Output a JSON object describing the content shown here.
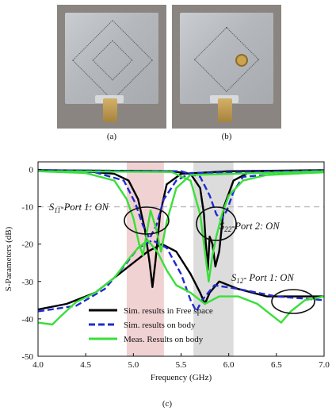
{
  "photos": {
    "a": {
      "caption": "(a)"
    },
    "b": {
      "caption": "(b)"
    }
  },
  "figure_caption": "(c)",
  "chart_data": {
    "type": "line",
    "xlabel": "Frequency (GHz)",
    "ylabel": "S-Parameters (dB)",
    "xlim": [
      4.0,
      7.0
    ],
    "ylim": [
      -50,
      2
    ],
    "xticks": [
      "4.0",
      "4.5",
      "5.0",
      "5.5",
      "6.0",
      "6.5",
      "7.0"
    ],
    "yticks": [
      "0",
      "-10",
      "-20",
      "-30",
      "-40",
      "-50"
    ],
    "reference_line_db": -10,
    "bands": [
      {
        "from": 4.93,
        "to": 5.32,
        "color": "#f1d2d2"
      },
      {
        "from": 5.63,
        "to": 6.05,
        "color": "#dcdcdc"
      }
    ],
    "annotations": [
      {
        "main": "S",
        "sub": "11",
        "rest": "-Port 1: ON"
      },
      {
        "main": "S",
        "sub": "22",
        "rest": "-Port 2: ON"
      },
      {
        "main": "S",
        "sub": "12",
        "rest": "- Port 1: ON"
      }
    ],
    "legend": {
      "placement": "bottom-center"
    },
    "series": [
      {
        "name": "Sim. results in Free space",
        "color": "#000000",
        "style": "solid",
        "curves": {
          "s11": [
            [
              4.0,
              -0.3
            ],
            [
              4.5,
              -0.5
            ],
            [
              4.8,
              -1.2
            ],
            [
              4.95,
              -3
            ],
            [
              5.05,
              -8
            ],
            [
              5.12,
              -16
            ],
            [
              5.17,
              -25
            ],
            [
              5.2,
              -31.5
            ],
            [
              5.23,
              -25
            ],
            [
              5.28,
              -12
            ],
            [
              5.35,
              -4
            ],
            [
              5.5,
              -1.2
            ],
            [
              6.0,
              -0.5
            ],
            [
              7.0,
              -0.2
            ]
          ],
          "s22": [
            [
              4.0,
              -0.2
            ],
            [
              5.4,
              -0.5
            ],
            [
              5.6,
              -1.2
            ],
            [
              5.7,
              -5
            ],
            [
              5.74,
              -12
            ],
            [
              5.76,
              -20
            ],
            [
              5.78,
              -27
            ],
            [
              5.8,
              -18
            ],
            [
              5.83,
              -20
            ],
            [
              5.86,
              -26
            ],
            [
              5.9,
              -22
            ],
            [
              5.95,
              -10
            ],
            [
              6.05,
              -3
            ],
            [
              6.2,
              -1
            ],
            [
              7.0,
              -0.3
            ]
          ],
          "s12": [
            [
              4.0,
              -37.5
            ],
            [
              4.3,
              -36
            ],
            [
              4.6,
              -33
            ],
            [
              4.8,
              -29
            ],
            [
              5.0,
              -25
            ],
            [
              5.15,
              -22
            ],
            [
              5.3,
              -20
            ],
            [
              5.45,
              -22
            ],
            [
              5.6,
              -28
            ],
            [
              5.7,
              -33
            ],
            [
              5.75,
              -36
            ],
            [
              5.8,
              -33
            ],
            [
              5.9,
              -30
            ],
            [
              6.1,
              -32
            ],
            [
              6.4,
              -34
            ],
            [
              6.7,
              -34
            ],
            [
              7.0,
              -34
            ]
          ]
        }
      },
      {
        "name": "Sim. results on body",
        "color": "#1f2bd1",
        "style": "dashed",
        "curves": {
          "s11": [
            [
              4.0,
              -0.3
            ],
            [
              4.6,
              -0.8
            ],
            [
              4.9,
              -3
            ],
            [
              5.02,
              -9
            ],
            [
              5.1,
              -15
            ],
            [
              5.17,
              -18.5
            ],
            [
              5.24,
              -15
            ],
            [
              5.32,
              -8
            ],
            [
              5.45,
              -3
            ],
            [
              5.6,
              -1
            ],
            [
              7.0,
              -0.3
            ]
          ],
          "s22": [
            [
              4.0,
              -0.2
            ],
            [
              5.5,
              -0.5
            ],
            [
              5.7,
              -2
            ],
            [
              5.8,
              -7
            ],
            [
              5.87,
              -12
            ],
            [
              5.92,
              -13.5
            ],
            [
              5.98,
              -11
            ],
            [
              6.05,
              -6
            ],
            [
              6.15,
              -2
            ],
            [
              7.0,
              -0.4
            ]
          ],
          "s12": [
            [
              4.0,
              -38
            ],
            [
              4.4,
              -36.5
            ],
            [
              4.7,
              -32
            ],
            [
              4.9,
              -26
            ],
            [
              5.05,
              -21
            ],
            [
              5.2,
              -19
            ],
            [
              5.35,
              -21
            ],
            [
              5.5,
              -28
            ],
            [
              5.6,
              -35
            ],
            [
              5.66,
              -38
            ],
            [
              5.72,
              -35
            ],
            [
              5.85,
              -31
            ],
            [
              6.1,
              -32
            ],
            [
              6.5,
              -34
            ],
            [
              7.0,
              -35
            ]
          ]
        }
      },
      {
        "name": "Meas. Results on body",
        "color": "#38e038",
        "style": "solid",
        "curves": {
          "s11": [
            [
              4.0,
              -0.5
            ],
            [
              4.5,
              -1
            ],
            [
              4.8,
              -3
            ],
            [
              4.93,
              -8
            ],
            [
              5.0,
              -13
            ],
            [
              5.06,
              -20
            ],
            [
              5.1,
              -23
            ],
            [
              5.14,
              -17
            ],
            [
              5.18,
              -11
            ],
            [
              5.24,
              -16
            ],
            [
              5.29,
              -22
            ],
            [
              5.35,
              -14
            ],
            [
              5.45,
              -5
            ],
            [
              5.6,
              -1.5
            ],
            [
              7.0,
              -0.5
            ]
          ],
          "s22": [
            [
              4.0,
              -0.5
            ],
            [
              5.4,
              -0.7
            ],
            [
              5.6,
              -3
            ],
            [
              5.7,
              -12
            ],
            [
              5.75,
              -22
            ],
            [
              5.79,
              -30
            ],
            [
              5.83,
              -23
            ],
            [
              5.87,
              -18
            ],
            [
              5.93,
              -12
            ],
            [
              6.0,
              -7
            ],
            [
              6.15,
              -3
            ],
            [
              6.4,
              -1.5
            ],
            [
              7.0,
              -0.8
            ]
          ],
          "s12": [
            [
              4.0,
              -41
            ],
            [
              4.15,
              -41.5
            ],
            [
              4.25,
              -39
            ],
            [
              4.4,
              -35.5
            ],
            [
              4.6,
              -33
            ],
            [
              4.8,
              -29
            ],
            [
              4.95,
              -24
            ],
            [
              5.05,
              -21
            ],
            [
              5.15,
              -19
            ],
            [
              5.25,
              -22
            ],
            [
              5.35,
              -27
            ],
            [
              5.45,
              -31
            ],
            [
              5.6,
              -33
            ],
            [
              5.75,
              -36
            ],
            [
              5.9,
              -34
            ],
            [
              6.1,
              -34
            ],
            [
              6.3,
              -36
            ],
            [
              6.45,
              -39
            ],
            [
              6.55,
              -41
            ],
            [
              6.65,
              -38
            ],
            [
              6.8,
              -35
            ],
            [
              7.0,
              -34
            ]
          ]
        }
      }
    ]
  }
}
